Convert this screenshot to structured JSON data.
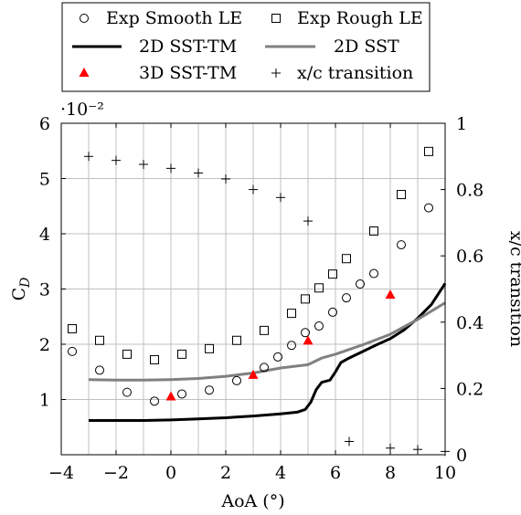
{
  "chart_data": {
    "type": "scatter",
    "xlabel": "AoA (°)",
    "ylabel_left": "C_D",
    "ylabel_right": "x/c transition",
    "x_range": [
      -4,
      10
    ],
    "y_left_range": [
      0,
      0.06
    ],
    "y_right_range": [
      0,
      1
    ],
    "y_left_scale_label": "·10⁻²",
    "grid": true,
    "legend_placement": "top",
    "x_ticks": [
      -4,
      -2,
      0,
      2,
      4,
      6,
      8,
      10
    ],
    "x_tick_labels": [
      "−4",
      "−2",
      "0",
      "2",
      "4",
      "6",
      "8",
      "10"
    ],
    "y_left_ticks": [
      0.01,
      0.02,
      0.03,
      0.04,
      0.05,
      0.06
    ],
    "y_left_tick_labels": [
      "1",
      "2",
      "3",
      "4",
      "5",
      "6"
    ],
    "y_right_ticks": [
      0,
      0.2,
      0.4,
      0.6,
      0.8,
      1
    ],
    "y_right_tick_labels": [
      "0",
      "0.2",
      "0.4",
      "0.6",
      "0.8",
      "1"
    ],
    "series": [
      {
        "name": "Exp Smooth LE",
        "kind": "scatter",
        "marker": "circle",
        "axis": "left",
        "color": "#000000",
        "points": [
          [
            -3.6,
            0.0187
          ],
          [
            -2.6,
            0.0153
          ],
          [
            -1.6,
            0.0113
          ],
          [
            -0.6,
            0.0097
          ],
          [
            0.4,
            0.011
          ],
          [
            1.4,
            0.0117
          ],
          [
            2.4,
            0.0134
          ],
          [
            3.4,
            0.0158
          ],
          [
            3.9,
            0.0177
          ],
          [
            4.4,
            0.0198
          ],
          [
            4.9,
            0.0221
          ],
          [
            5.4,
            0.0233
          ],
          [
            5.9,
            0.0258
          ],
          [
            6.4,
            0.0284
          ],
          [
            6.9,
            0.0309
          ],
          [
            7.4,
            0.0328
          ],
          [
            8.4,
            0.038
          ],
          [
            9.4,
            0.0447
          ]
        ]
      },
      {
        "name": "Exp Rough LE",
        "kind": "scatter",
        "marker": "square",
        "axis": "left",
        "color": "#000000",
        "points": [
          [
            -3.6,
            0.0228
          ],
          [
            -2.6,
            0.0207
          ],
          [
            -1.6,
            0.0182
          ],
          [
            -0.6,
            0.0172
          ],
          [
            0.4,
            0.0182
          ],
          [
            1.4,
            0.0192
          ],
          [
            2.4,
            0.0207
          ],
          [
            3.4,
            0.0225
          ],
          [
            4.4,
            0.0256
          ],
          [
            4.9,
            0.0282
          ],
          [
            5.4,
            0.0302
          ],
          [
            5.9,
            0.0327
          ],
          [
            6.4,
            0.0355
          ],
          [
            7.4,
            0.0405
          ],
          [
            8.4,
            0.0471
          ],
          [
            9.4,
            0.0549
          ]
        ]
      },
      {
        "name": "2D SST-TM",
        "kind": "line",
        "axis": "left",
        "color": "#000000",
        "points": [
          [
            -3,
            0.0062
          ],
          [
            -2,
            0.0062
          ],
          [
            -1,
            0.0062
          ],
          [
            0,
            0.0063
          ],
          [
            1,
            0.0065
          ],
          [
            2,
            0.0067
          ],
          [
            3,
            0.007
          ],
          [
            4,
            0.0074
          ],
          [
            4.6,
            0.0077
          ],
          [
            4.9,
            0.0082
          ],
          [
            5.1,
            0.0095
          ],
          [
            5.3,
            0.0118
          ],
          [
            5.5,
            0.0131
          ],
          [
            5.8,
            0.0135
          ],
          [
            6.0,
            0.015
          ],
          [
            6.2,
            0.0167
          ],
          [
            6.5,
            0.0175
          ],
          [
            7,
            0.0187
          ],
          [
            7.5,
            0.0199
          ],
          [
            8,
            0.021
          ],
          [
            8.5,
            0.0226
          ],
          [
            9,
            0.0247
          ],
          [
            9.5,
            0.0272
          ],
          [
            10,
            0.031
          ]
        ]
      },
      {
        "name": "2D SST",
        "kind": "line",
        "axis": "left",
        "color": "#808080",
        "points": [
          [
            -3,
            0.0136
          ],
          [
            -2,
            0.0135
          ],
          [
            -1,
            0.0135
          ],
          [
            0,
            0.0136
          ],
          [
            1,
            0.0138
          ],
          [
            2,
            0.0142
          ],
          [
            3,
            0.0148
          ],
          [
            4,
            0.0157
          ],
          [
            5,
            0.0163
          ],
          [
            5.5,
            0.0175
          ],
          [
            6,
            0.0182
          ],
          [
            7,
            0.0199
          ],
          [
            8,
            0.0218
          ],
          [
            9,
            0.0245
          ],
          [
            10,
            0.0275
          ]
        ]
      },
      {
        "name": "3D SST-TM",
        "kind": "scatter",
        "marker": "triangle",
        "axis": "left",
        "color": "#ff0000",
        "points": [
          [
            0,
            0.0105
          ],
          [
            3,
            0.0144
          ],
          [
            5,
            0.0206
          ],
          [
            8,
            0.0289
          ]
        ]
      },
      {
        "name": "x/c transition",
        "kind": "scatter",
        "marker": "plus",
        "axis": "right",
        "color": "#000000",
        "points": [
          [
            -3,
            0.9
          ],
          [
            -2,
            0.888
          ],
          [
            -1,
            0.876
          ],
          [
            0,
            0.864
          ],
          [
            1,
            0.85
          ],
          [
            2,
            0.832
          ],
          [
            3,
            0.8
          ],
          [
            4,
            0.776
          ],
          [
            5,
            0.705
          ],
          [
            6.5,
            0.04
          ],
          [
            8,
            0.02
          ],
          [
            9,
            0.016
          ],
          [
            10,
            0.01
          ]
        ]
      }
    ]
  }
}
